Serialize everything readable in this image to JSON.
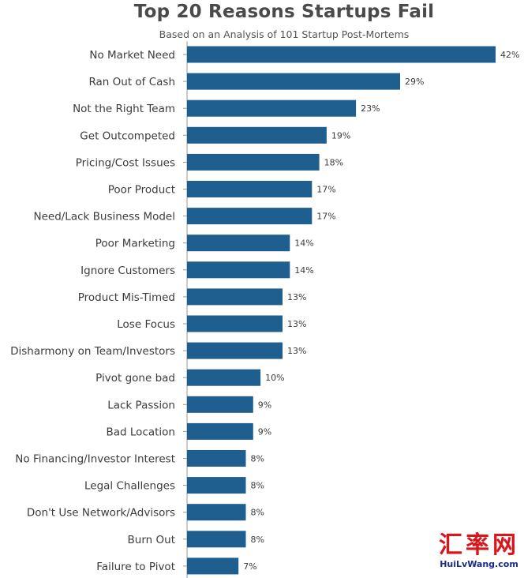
{
  "chart_data": {
    "type": "bar",
    "orientation": "horizontal",
    "title": "Top 20 Reasons Startups Fail",
    "subtitle": "Based on an Analysis of 101 Startup Post-Mortems",
    "categories": [
      "No Market Need",
      "Ran Out of Cash",
      "Not the Right Team",
      "Get Outcompeted",
      "Pricing/Cost Issues",
      "Poor Product",
      "Need/Lack Business Model",
      "Poor Marketing",
      "Ignore Customers",
      "Product Mis-Timed",
      "Lose Focus",
      "Disharmony on Team/Investors",
      "Pivot gone bad",
      "Lack Passion",
      "Bad Location",
      "No Financing/Investor Interest",
      "Legal Challenges",
      "Don't Use Network/Advisors",
      "Burn Out",
      "Failure to Pivot"
    ],
    "values": [
      42,
      29,
      23,
      19,
      18,
      17,
      17,
      14,
      14,
      13,
      13,
      13,
      10,
      9,
      9,
      8,
      8,
      8,
      8,
      7
    ],
    "value_labels": [
      "42%",
      "29%",
      "23%",
      "19%",
      "18%",
      "17%",
      "17%",
      "14%",
      "14%",
      "13%",
      "13%",
      "13%",
      "10%",
      "9%",
      "9%",
      "8%",
      "8%",
      "8%",
      "8%",
      "7%"
    ],
    "unit": "%",
    "xlim": [
      0,
      42
    ],
    "xlabel": "",
    "ylabel": "",
    "grid": false,
    "bar_color": "#1f5f8f"
  },
  "watermark": {
    "chinese": "汇率网",
    "url": "HuiLvWang.com",
    "color": "#d9161c",
    "url_color": "#1a2a8a"
  }
}
